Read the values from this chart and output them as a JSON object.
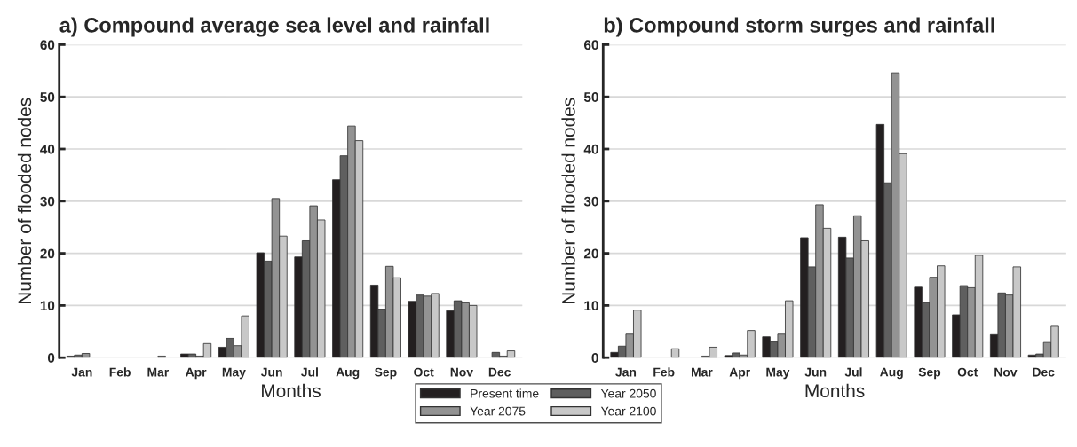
{
  "chart_data": [
    {
      "type": "bar",
      "title": "a) Compound average sea level and rainfall",
      "xlabel": "Months",
      "ylabel": "Number of flooded nodes",
      "categories": [
        "Jan",
        "Feb",
        "Mar",
        "Apr",
        "May",
        "Jun",
        "Jul",
        "Aug",
        "Sep",
        "Oct",
        "Nov",
        "Dec"
      ],
      "series": [
        {
          "name": "Present time",
          "color": "#231f20",
          "values": [
            0.3,
            null,
            null,
            0.7,
            2,
            20.1,
            19.3,
            34.1,
            13.9,
            10.8,
            9,
            null
          ]
        },
        {
          "name": "Year 2050",
          "color": "#5f5f5f",
          "values": [
            0.5,
            null,
            null,
            0.7,
            3.7,
            18.5,
            22.4,
            38.7,
            9.3,
            12,
            10.9,
            1
          ]
        },
        {
          "name": "Year 2075",
          "color": "#939393",
          "values": [
            0.8,
            null,
            0.3,
            0.3,
            2.3,
            30.5,
            29.1,
            44.4,
            17.5,
            11.8,
            10.5,
            0.3
          ]
        },
        {
          "name": "Year 2100",
          "color": "#c8c8c8",
          "values": [
            null,
            null,
            null,
            2.7,
            8,
            23.3,
            26.4,
            41.6,
            15.3,
            12.3,
            10,
            1.3
          ]
        }
      ],
      "ylim": [
        0,
        60
      ],
      "yticks": [
        0,
        10,
        20,
        30,
        40,
        50,
        60
      ],
      "grid": "y",
      "legend": "bottom"
    },
    {
      "type": "bar",
      "title": "b) Compound storm surges and rainfall",
      "xlabel": "Months",
      "ylabel": "Number of flooded nodes",
      "categories": [
        "Jan",
        "Feb",
        "Mar",
        "Apr",
        "May",
        "Jun",
        "Jul",
        "Aug",
        "Sep",
        "Oct",
        "Nov",
        "Dec"
      ],
      "series": [
        {
          "color": "#231f20",
          "values": [
            1,
            null,
            null,
            0.4,
            4,
            23,
            23.1,
            44.7,
            13.5,
            8.2,
            4.4,
            0.5
          ]
        },
        {
          "color": "#5f5f5f",
          "values": [
            2.2,
            null,
            null,
            0.9,
            3,
            17.4,
            19.1,
            33.5,
            10.5,
            13.8,
            12.4,
            0.7
          ]
        },
        {
          "color": "#939393",
          "values": [
            4.5,
            null,
            0.3,
            0.5,
            4.5,
            29.3,
            27.2,
            54.6,
            15.4,
            13.4,
            12,
            2.9
          ]
        },
        {
          "color": "#c8c8c8",
          "values": [
            9.1,
            1.7,
            2,
            5.2,
            10.9,
            24.8,
            22.4,
            39.1,
            17.6,
            19.6,
            17.4,
            6
          ]
        }
      ],
      "ylim": [
        0,
        60
      ],
      "yticks": [
        0,
        10,
        20,
        30,
        40,
        50,
        60
      ],
      "grid": "y"
    }
  ]
}
